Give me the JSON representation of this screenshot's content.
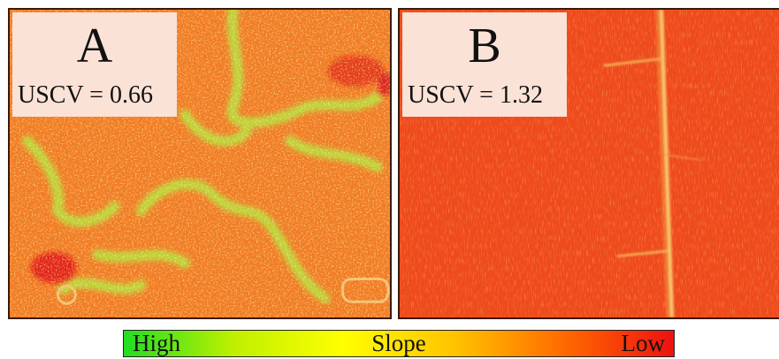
{
  "panels": [
    {
      "letter": "A",
      "metric": "USCV = 0.66",
      "description_colors": {
        "base": "#f07820",
        "high_slope": "#a8e030",
        "low_slope": "#e8201a"
      }
    },
    {
      "letter": "B",
      "metric": "USCV = 1.32",
      "description_colors": {
        "base": "#ee4a1c",
        "feature": "#f7c068"
      }
    }
  ],
  "legend": {
    "high": "High",
    "title": "Slope",
    "low": "Low",
    "gradient": [
      "#22dd22",
      "#bff000",
      "#ffff00",
      "#ffc400",
      "#ff6a00",
      "#ee1111"
    ]
  }
}
